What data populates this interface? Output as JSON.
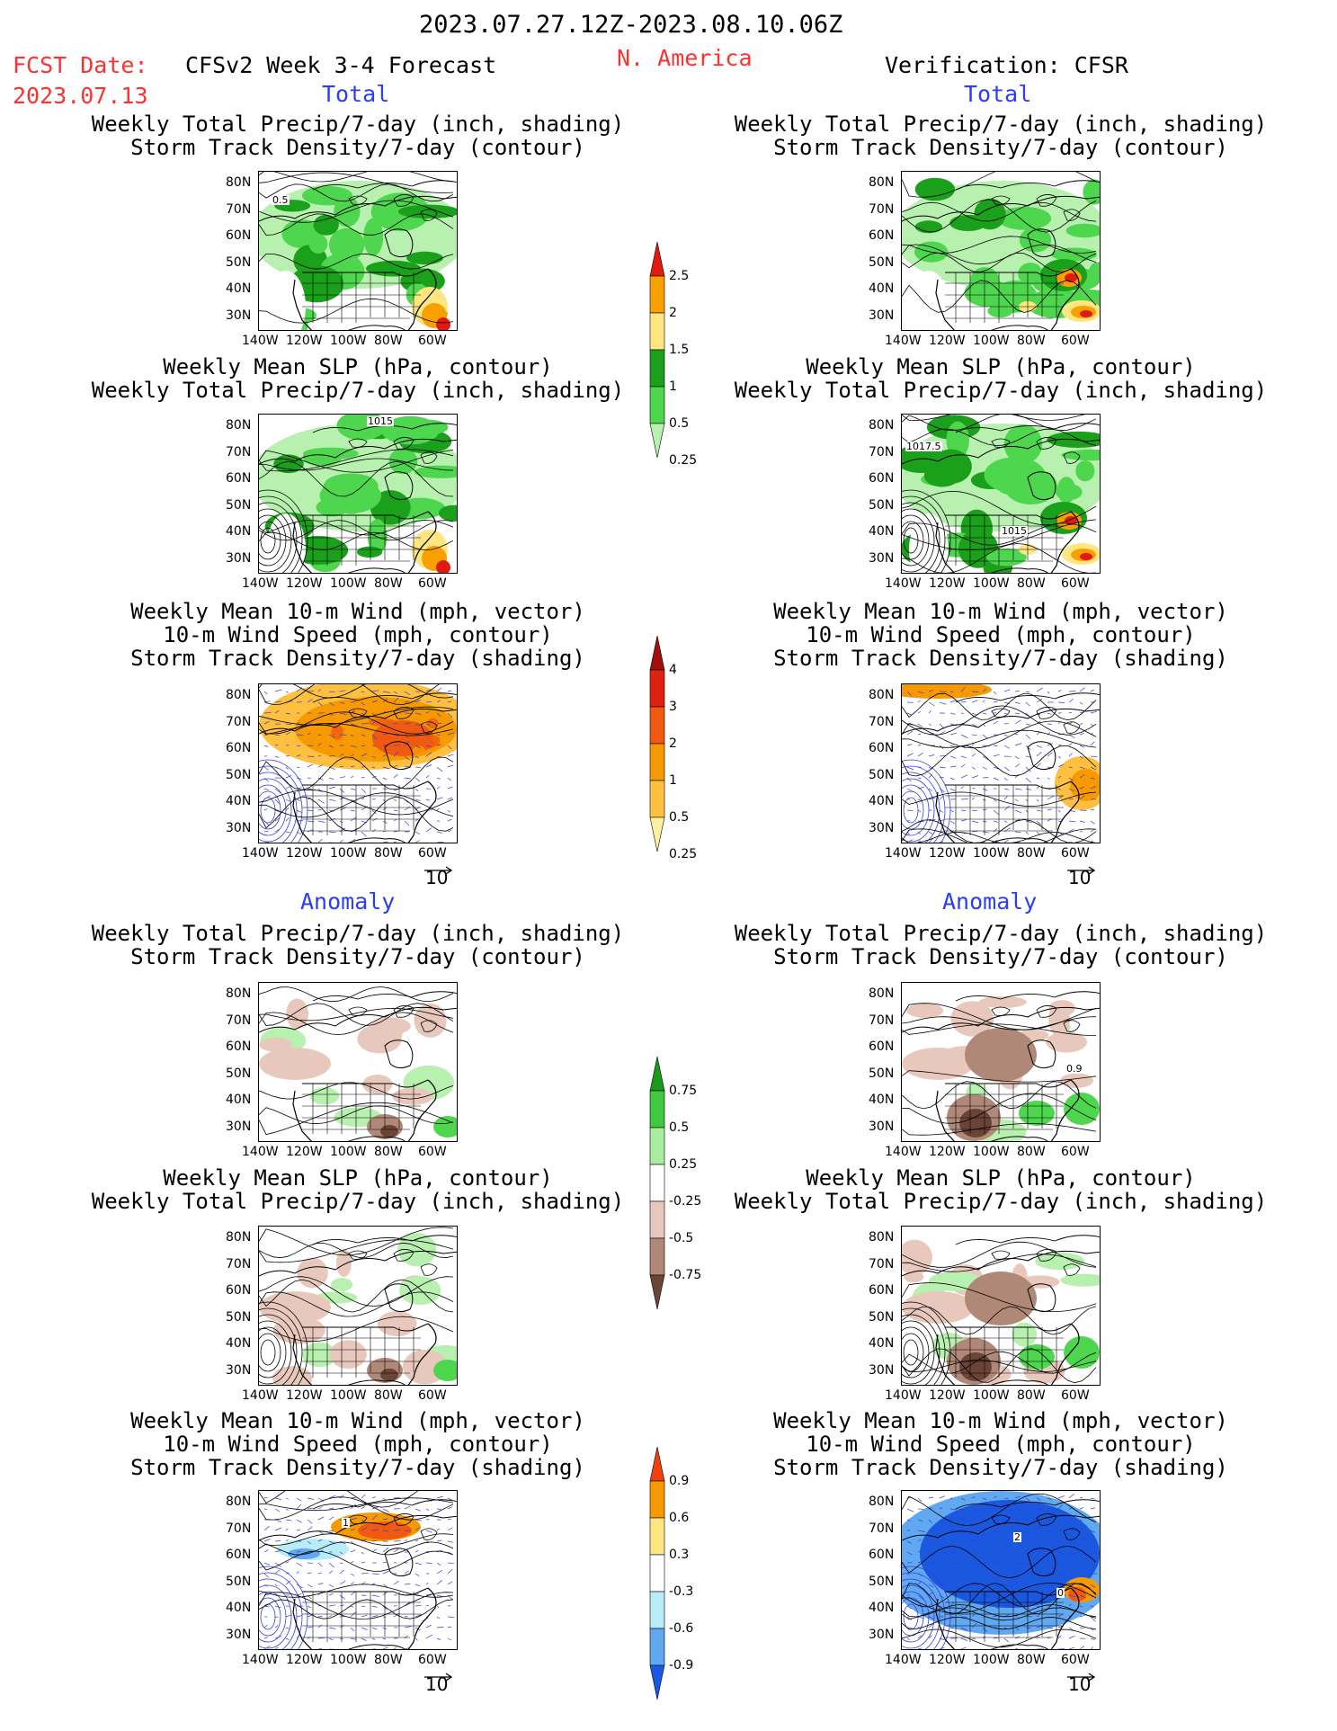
{
  "header": {
    "period": "2023.07.27.12Z-2023.08.10.06Z",
    "fcst_label": "FCST Date:",
    "fcst_date": "2023.07.13",
    "model": "CFSv2 Week 3-4 Forecast",
    "region": "N. America",
    "verification": "Verification: CFSR"
  },
  "sections": {
    "total": "Total",
    "anomaly": "Anomaly"
  },
  "titles": {
    "precip_storm": [
      "Weekly Total Precip/7-day (inch, shading)",
      "Storm Track Density/7-day (contour)"
    ],
    "slp_precip": [
      "Weekly Mean SLP (hPa, contour)",
      "Weekly Total Precip/7-day (inch, shading)"
    ],
    "wind_storm": [
      "Weekly Mean 10-m Wind (mph, vector)",
      "10-m Wind Speed (mph, contour)",
      "Storm Track Density/7-day (shading)"
    ]
  },
  "axes": {
    "lat_ticks": [
      "80N",
      "70N",
      "60N",
      "50N",
      "40N",
      "30N"
    ],
    "lon_ticks": [
      "140W",
      "120W",
      "100W",
      "80W",
      "60W"
    ]
  },
  "vector_ref": "10",
  "map_labels": {
    "fc_precip_storm": "0.5",
    "fc_slp": "1015",
    "ver_slp_a": "1017.5",
    "ver_slp_b": "1015",
    "ver_anom_storm": "0.9",
    "fc_anom_wind": "1",
    "ver_anom_wind_a": "2",
    "ver_anom_wind_b": "0"
  },
  "colorbars": {
    "precip_total": {
      "labels": [
        "2.5",
        "2",
        "1.5",
        "1",
        "0.5",
        "0.25"
      ],
      "colors": [
        "#e01a10",
        "#f7a000",
        "#ffe680",
        "#1aa01a",
        "#4ed64e",
        "#b8f0b0"
      ]
    },
    "storm_total": {
      "labels": [
        "4",
        "3",
        "2",
        "1",
        "0.5",
        "0.25"
      ],
      "colors": [
        "#a01010",
        "#e02010",
        "#f05a10",
        "#f79a00",
        "#ffc040",
        "#fff0a0"
      ]
    },
    "precip_anom": {
      "labels": [
        "0.75",
        "0.5",
        "0.25",
        "-0.25",
        "-0.5",
        "-0.75"
      ],
      "colors": [
        "#1a9a1a",
        "#40c840",
        "#a8eca0",
        "#ffffff",
        "#e8c8bc",
        "#b08878",
        "#6a4436"
      ]
    },
    "storm_anom": {
      "labels": [
        "0.9",
        "0.6",
        "0.3",
        "-0.3",
        "-0.6",
        "-0.9"
      ],
      "colors": [
        "#f04010",
        "#f79a00",
        "#ffe680",
        "#ffffff",
        "#b8ecf8",
        "#60a8f0",
        "#1a58e0"
      ]
    }
  }
}
